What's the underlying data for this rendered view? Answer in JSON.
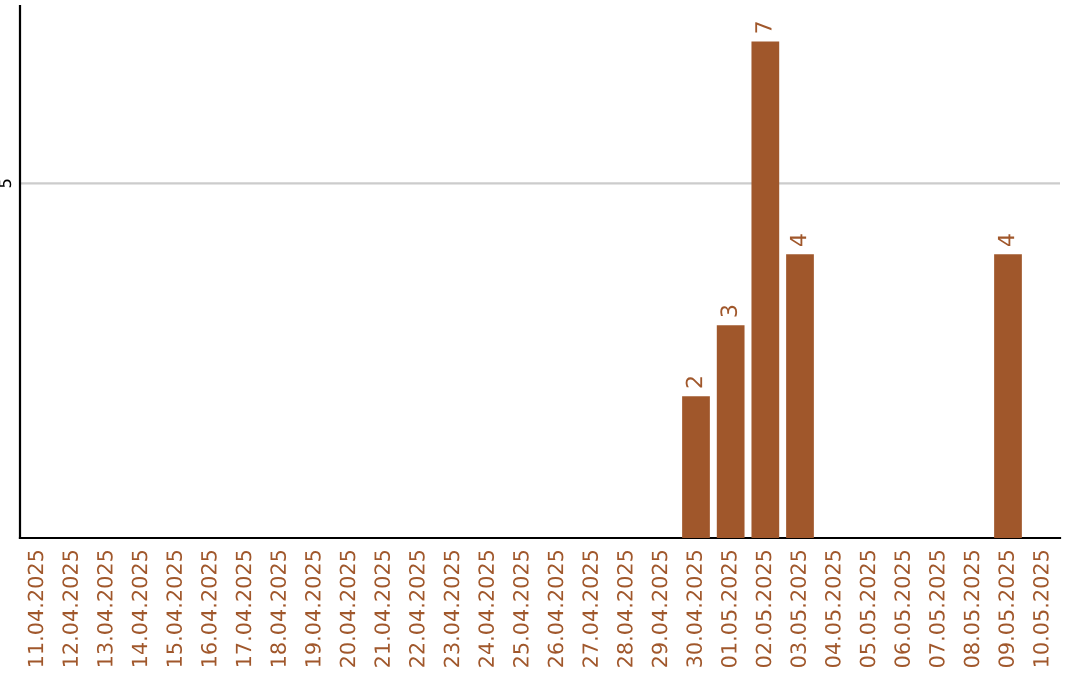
{
  "chart_data": {
    "type": "bar",
    "categories": [
      "11.04.2025",
      "12.04.2025",
      "13.04.2025",
      "14.04.2025",
      "15.04.2025",
      "16.04.2025",
      "17.04.2025",
      "18.04.2025",
      "19.04.2025",
      "20.04.2025",
      "21.04.2025",
      "22.04.2025",
      "23.04.2025",
      "24.04.2025",
      "25.04.2025",
      "26.04.2025",
      "27.04.2025",
      "28.04.2025",
      "29.04.2025",
      "30.04.2025",
      "01.05.2025",
      "02.05.2025",
      "03.05.2025",
      "04.05.2025",
      "05.05.2025",
      "06.05.2025",
      "07.05.2025",
      "08.05.2025",
      "09.05.2025",
      "10.05.2025"
    ],
    "values": [
      null,
      null,
      null,
      null,
      null,
      null,
      null,
      null,
      null,
      null,
      null,
      null,
      null,
      null,
      null,
      null,
      null,
      null,
      null,
      2,
      3,
      7,
      4,
      null,
      null,
      null,
      null,
      null,
      4,
      null
    ],
    "color": "#a0572b",
    "ylim": [
      0,
      7.5
    ],
    "yticks": [
      5
    ],
    "grid": "y",
    "data_labels": true,
    "legend": false
  }
}
